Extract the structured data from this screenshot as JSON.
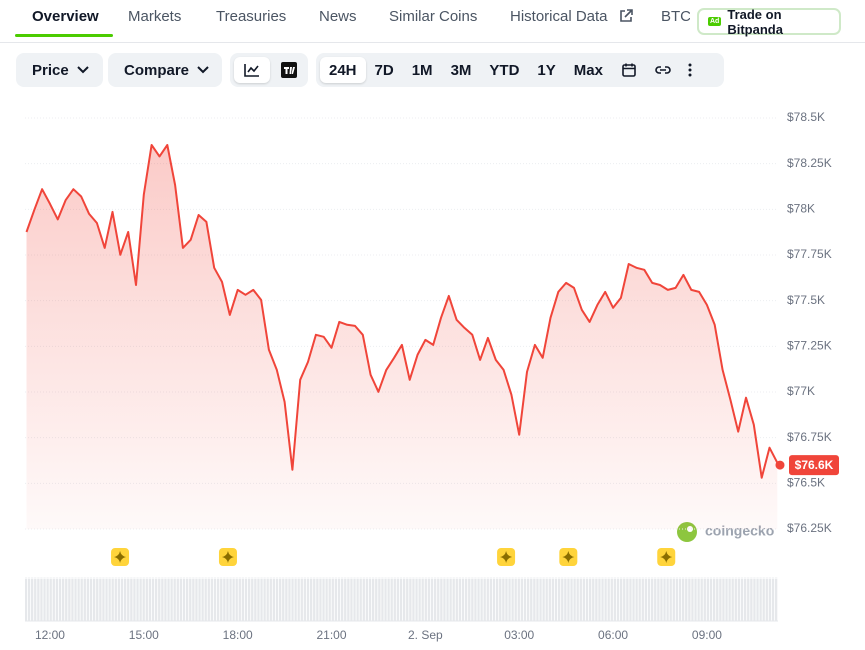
{
  "tabs": [
    "Overview",
    "Markets",
    "Treasuries",
    "News",
    "Similar Coins",
    "Historical Data",
    "BTC"
  ],
  "ad_button": {
    "badge": "Ad",
    "label": "Trade on Bitpanda"
  },
  "toolbar": {
    "price": "Price",
    "compare": "Compare",
    "ranges": [
      "24H",
      "7D",
      "1M",
      "3M",
      "YTD",
      "1Y",
      "Max"
    ]
  },
  "chart_data": {
    "type": "line",
    "x": [
      11.25,
      11.5,
      11.75,
      12,
      12.25,
      12.5,
      12.75,
      13,
      13.25,
      13.5,
      13.75,
      14,
      14.25,
      14.5,
      14.75,
      15,
      15.25,
      15.5,
      15.75,
      16,
      16.25,
      16.5,
      16.75,
      17,
      17.25,
      17.5,
      17.75,
      18,
      18.25,
      18.5,
      18.75,
      19,
      19.25,
      19.5,
      19.75,
      20,
      20.25,
      20.5,
      20.75,
      21,
      21.25,
      21.5,
      21.75,
      22,
      22.25,
      22.5,
      22.75,
      23,
      23.25,
      23.5,
      23.75,
      24,
      24.25,
      24.5,
      24.75,
      25,
      25.25,
      25.5,
      25.75,
      26,
      26.25,
      26.5,
      26.75,
      27,
      27.25,
      27.5,
      27.75,
      28,
      28.25,
      28.5,
      28.75,
      29,
      29.25,
      29.5,
      29.75,
      30,
      30.25,
      30.5,
      30.75,
      31,
      31.25,
      31.5,
      31.75,
      32,
      32.25,
      32.5,
      32.75,
      33,
      33.25,
      33.5,
      33.75,
      34,
      34.25,
      34.5,
      34.75,
      35,
      35.25
    ],
    "series": [
      {
        "name": "Price",
        "color": "#f0453a",
        "values": [
          77876,
          77997,
          78110,
          78030,
          77945,
          78050,
          78110,
          78070,
          77975,
          77925,
          77789,
          77986,
          77751,
          77876,
          77586,
          78080,
          78352,
          78290,
          78352,
          78133,
          77789,
          77833,
          77969,
          77931,
          77680,
          77603,
          77422,
          77559,
          77532,
          77559,
          77504,
          77231,
          77121,
          76946,
          76574,
          77067,
          77165,
          77313,
          77302,
          77242,
          77384,
          77368,
          77362,
          77313,
          77094,
          77001,
          77121,
          77187,
          77258,
          77067,
          77203,
          77285,
          77258,
          77406,
          77526,
          77395,
          77351,
          77313,
          77176,
          77296,
          77176,
          77121,
          76985,
          76766,
          77110,
          77258,
          77187,
          77406,
          77548,
          77597,
          77570,
          77450,
          77384,
          77477,
          77548,
          77461,
          77515,
          77701,
          77680,
          77669,
          77597,
          77586,
          77559,
          77570,
          77641,
          77559,
          77548,
          77477,
          77368,
          77121,
          76958,
          76783,
          76969,
          76821,
          76531,
          76695,
          76613
        ]
      }
    ],
    "xlim": [
      11.25,
      35.25
    ],
    "xticks": [
      {
        "value": 12,
        "label": "12:00"
      },
      {
        "value": 15,
        "label": "15:00"
      },
      {
        "value": 18,
        "label": "18:00"
      },
      {
        "value": 21,
        "label": "21:00"
      },
      {
        "value": 24,
        "label": "2. Sep"
      },
      {
        "value": 27,
        "label": "03:00"
      },
      {
        "value": 30,
        "label": "06:00"
      },
      {
        "value": 33,
        "label": "09:00"
      }
    ],
    "ylim": [
      76250,
      78500
    ],
    "yticks": [
      {
        "value": 78500,
        "label": "$78.5K"
      },
      {
        "value": 78250,
        "label": "$78.25K"
      },
      {
        "value": 78000,
        "label": "$78K"
      },
      {
        "value": 77750,
        "label": "$77.75K"
      },
      {
        "value": 77500,
        "label": "$77.5K"
      },
      {
        "value": 77250,
        "label": "$77.25K"
      },
      {
        "value": 77000,
        "label": "$77K"
      },
      {
        "value": 76750,
        "label": "$76.75K"
      },
      {
        "value": 76500,
        "label": "$76.5K"
      },
      {
        "value": 76250,
        "label": "$76.25K"
      }
    ],
    "grid": true,
    "current_price": 76600,
    "current_price_label": "$76.6K",
    "events_x": [
      14.24,
      17.69,
      26.58,
      28.57,
      31.7
    ],
    "watermark": "coingecko"
  }
}
